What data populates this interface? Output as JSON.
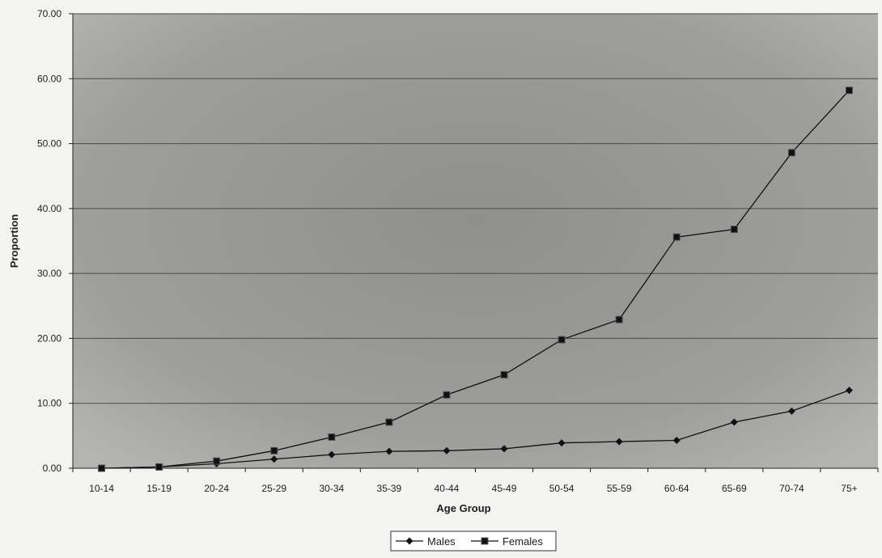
{
  "chart_data": {
    "type": "line",
    "title": "",
    "xlabel": "Age Group",
    "ylabel": "Proportion",
    "categories": [
      "10-14",
      "15-19",
      "20-24",
      "25-29",
      "30-34",
      "35-39",
      "40-44",
      "45-49",
      "50-54",
      "55-59",
      "60-64",
      "65-69",
      "70-74",
      "75+"
    ],
    "ylim": [
      0,
      70
    ],
    "yticks": [
      "0.00",
      "10.00",
      "20.00",
      "30.00",
      "40.00",
      "50.00",
      "60.00",
      "70.00"
    ],
    "grid": true,
    "legend_position": "bottom",
    "series": [
      {
        "name": "Males",
        "marker": "diamond",
        "values": [
          0.0,
          0.2,
          0.7,
          1.4,
          2.1,
          2.6,
          2.7,
          3.0,
          3.9,
          4.1,
          4.3,
          7.1,
          8.8,
          12.0
        ]
      },
      {
        "name": "Females",
        "marker": "square",
        "values": [
          0.0,
          0.2,
          1.1,
          2.7,
          4.8,
          7.1,
          11.3,
          14.4,
          19.8,
          22.9,
          35.6,
          36.8,
          48.6,
          58.2
        ]
      }
    ],
    "colors": {
      "plot_background": "#9c9c9a",
      "gridline": "#4a4a4a",
      "line": "#111111",
      "page_background": "#f3f3f1"
    }
  }
}
